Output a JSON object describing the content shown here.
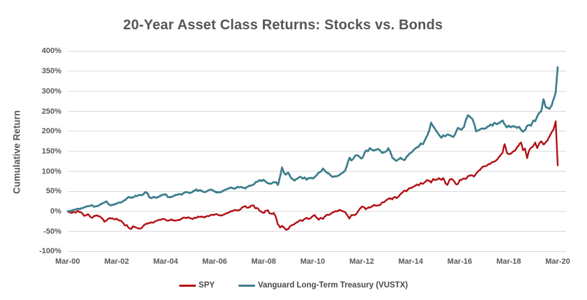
{
  "title": "20-Year Asset Class Returns: Stocks vs. Bonds",
  "y_axis": {
    "title": "Cumulative Return",
    "tick_labels": [
      "400%",
      "350%",
      "300%",
      "250%",
      "200%",
      "150%",
      "100%",
      "50%",
      "0%",
      "-50%",
      "-100%"
    ],
    "tick_values": [
      400,
      350,
      300,
      250,
      200,
      150,
      100,
      50,
      0,
      -50,
      -100
    ]
  },
  "x_axis": {
    "tick_labels": [
      "Mar-00",
      "Mar-02",
      "Mar-04",
      "Mar-06",
      "Mar-08",
      "Mar-10",
      "Mar-12",
      "Mar-14",
      "Mar-16",
      "Mar-18",
      "Mar-20"
    ]
  },
  "legend": {
    "items": [
      {
        "label": "SPY",
        "color": "#b21014"
      },
      {
        "label": "Vanguard Long-Term Treasury (VUSTX)",
        "color": "#3d7e8d"
      }
    ]
  },
  "colors": {
    "spy": "#b21014",
    "vustx": "#3d7e8d",
    "gridline": "#d9d9d9",
    "axis_text": "#595959",
    "title_text": "#555555"
  },
  "chart_data": {
    "type": "line",
    "title": "20-Year Asset Class Returns: Stocks vs. Bonds",
    "xlabel": "",
    "ylabel": "Cumulative Return",
    "ylim": [
      -100,
      400
    ],
    "grid": "horizontal",
    "legend_position": "bottom-center",
    "x_unit": "monthly cumulative return (%) from Mar-2000 through Mar-2020, 241 points per series",
    "x_tick_labels": [
      "Mar-00",
      "Mar-02",
      "Mar-04",
      "Mar-06",
      "Mar-08",
      "Mar-10",
      "Mar-12",
      "Mar-14",
      "Mar-16",
      "Mar-18",
      "Mar-20"
    ],
    "series": [
      {
        "name": "SPY",
        "color": "#b21014",
        "values_pct": [
          0,
          -2,
          -4,
          -1,
          -3,
          1,
          -2,
          -4,
          -11,
          -10,
          -7,
          -13,
          -16,
          -11,
          -10,
          -12,
          -13,
          -18,
          -26,
          -23,
          -18,
          -17,
          -18,
          -20,
          -18,
          -22,
          -23,
          -28,
          -35,
          -34,
          -41,
          -44,
          -37,
          -39,
          -41,
          -43,
          -42,
          -36,
          -32,
          -30,
          -29,
          -27,
          -28,
          -24,
          -23,
          -21,
          -20,
          -19,
          -21,
          -23,
          -22,
          -20,
          -23,
          -23,
          -22,
          -21,
          -17,
          -15,
          -17,
          -15,
          -17,
          -19,
          -16,
          -16,
          -13,
          -14,
          -13,
          -15,
          -12,
          -12,
          -9,
          -9,
          -8,
          -7,
          -10,
          -10,
          -9,
          -7,
          -5,
          -2,
          0,
          2,
          4,
          2,
          3,
          7,
          11,
          13,
          9,
          10,
          14,
          15,
          8,
          8,
          2,
          -1,
          -4,
          1,
          3,
          -5,
          -6,
          -4,
          -15,
          -33,
          -40,
          -36,
          -41,
          -46,
          -44,
          -37,
          -34,
          -32,
          -28,
          -25,
          -22,
          -24,
          -19,
          -16,
          -19,
          -17,
          -12,
          -9,
          -16,
          -21,
          -16,
          -19,
          -12,
          -9,
          -9,
          -5,
          -2,
          0,
          0,
          4,
          2,
          0,
          -2,
          -10,
          -18,
          -9,
          -9,
          -8,
          -2,
          6,
          12,
          11,
          5,
          9,
          10,
          12,
          16,
          14,
          15,
          16,
          22,
          23,
          28,
          31,
          33,
          30,
          36,
          33,
          37,
          43,
          47,
          52,
          50,
          57,
          58,
          60,
          63,
          67,
          65,
          71,
          69,
          73,
          78,
          77,
          72,
          81,
          78,
          80,
          83,
          79,
          83,
          70,
          66,
          79,
          81,
          77,
          69,
          68,
          78,
          79,
          82,
          81,
          88,
          90,
          90,
          87,
          94,
          100,
          104,
          111,
          112,
          114,
          117,
          119,
          123,
          124,
          128,
          134,
          141,
          146,
          168,
          148,
          143,
          144,
          149,
          151,
          159,
          166,
          172,
          153,
          157,
          133,
          152,
          159,
          163,
          172,
          158,
          170,
          175,
          167,
          172,
          177,
          187,
          197,
          205,
          225,
          115
        ]
      },
      {
        "name": "Vanguard Long-Term Treasury (VUSTX)",
        "color": "#3d7e8d",
        "values_pct": [
          0,
          1,
          2,
          4,
          5,
          7,
          6,
          8,
          10,
          12,
          13,
          14,
          15,
          12,
          13,
          14,
          17,
          20,
          22,
          25,
          18,
          15,
          16,
          18,
          20,
          22,
          22,
          25,
          28,
          32,
          36,
          34,
          35,
          39,
          38,
          41,
          40,
          42,
          48,
          46,
          35,
          33,
          36,
          34,
          35,
          38,
          40,
          42,
          43,
          36,
          35,
          37,
          38,
          41,
          42,
          43,
          42,
          46,
          48,
          47,
          46,
          48,
          52,
          55,
          51,
          53,
          50,
          48,
          50,
          53,
          54,
          53,
          50,
          47,
          48,
          48,
          51,
          54,
          56,
          57,
          60,
          58,
          57,
          61,
          60,
          61,
          59,
          57,
          61,
          64,
          65,
          67,
          73,
          74,
          78,
          76,
          79,
          74,
          71,
          69,
          70,
          73,
          73,
          66,
          86,
          110,
          96,
          92,
          97,
          87,
          81,
          77,
          81,
          84,
          86,
          82,
          85,
          79,
          83,
          84,
          82,
          86,
          91,
          97,
          99,
          107,
          101,
          97,
          94,
          89,
          86,
          88,
          88,
          91,
          95,
          97,
          103,
          118,
          134,
          127,
          132,
          140,
          140,
          136,
          132,
          140,
          152,
          150,
          158,
          154,
          152,
          154,
          156,
          152,
          146,
          148,
          150,
          158,
          150,
          134,
          130,
          126,
          130,
          134,
          130,
          128,
          136,
          142,
          146,
          150,
          156,
          160,
          162,
          170,
          168,
          178,
          188,
          200,
          222,
          212,
          205,
          198,
          190,
          184,
          190,
          188,
          192,
          190,
          188,
          186,
          196,
          208,
          206,
          204,
          210,
          228,
          240,
          236,
          232,
          220,
          200,
          202,
          205,
          207,
          206,
          209,
          212,
          217,
          214,
          221,
          218,
          220,
          223,
          227,
          218,
          210,
          214,
          210,
          213,
          212,
          209,
          211,
          204,
          199,
          203,
          214,
          216,
          214,
          227,
          225,
          238,
          246,
          252,
          280,
          262,
          258,
          256,
          264,
          280,
          298,
          360
        ]
      }
    ]
  }
}
